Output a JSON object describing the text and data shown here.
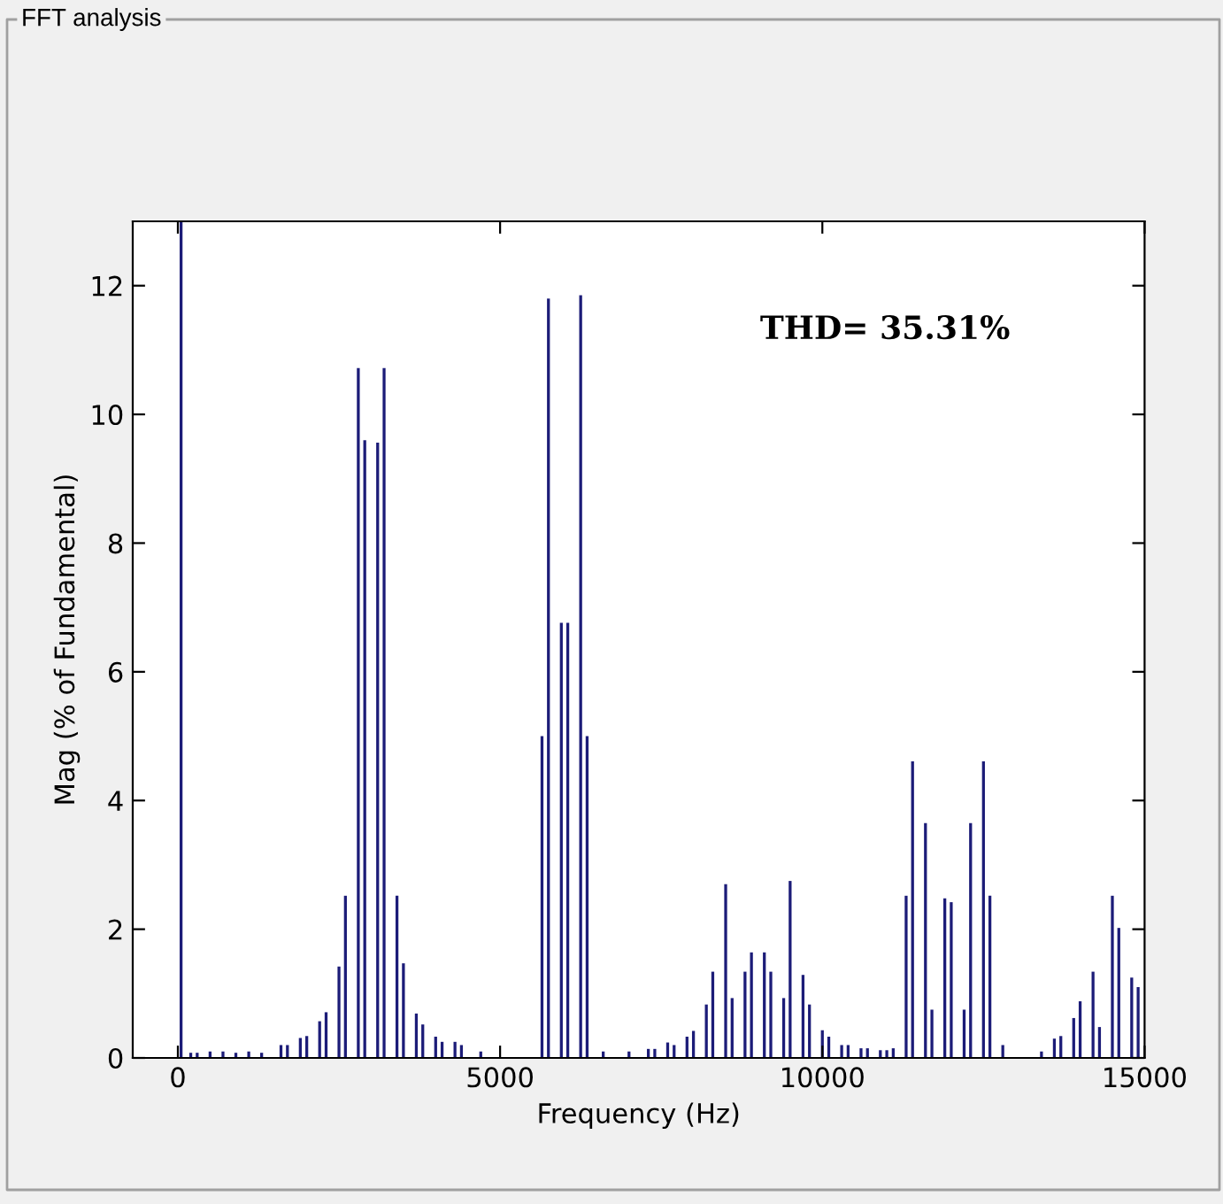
{
  "chart_data": {
    "type": "bar",
    "title": "FFT analysis",
    "xlabel": "Frequency (Hz)",
    "ylabel": "Mag (% of Fundamental)",
    "annotations": [
      "THD= 35.31%"
    ],
    "x": [
      50,
      200,
      300,
      500,
      700,
      900,
      1100,
      1300,
      1600,
      1700,
      1900,
      2000,
      2200,
      2300,
      2500,
      2600,
      2800,
      2900,
      3100,
      3200,
      3400,
      3500,
      3700,
      3800,
      4000,
      4100,
      4300,
      4400,
      4700,
      5650,
      5750,
      5950,
      6050,
      6250,
      6350,
      6600,
      7000,
      7300,
      7400,
      7600,
      7700,
      7900,
      8000,
      8200,
      8300,
      8500,
      8600,
      8800,
      8900,
      9100,
      9200,
      9400,
      9500,
      9700,
      9800,
      10000,
      10100,
      10300,
      10400,
      10600,
      10700,
      10900,
      11000,
      11100,
      11300,
      11400,
      11600,
      11700,
      11900,
      12000,
      12200,
      12300,
      12500,
      12600,
      12800,
      13400,
      13600,
      13700,
      13900,
      14000,
      14200,
      14300,
      14500,
      14600,
      14800,
      14900
    ],
    "values": [
      13,
      0.08,
      0.08,
      0.1,
      0.1,
      0.08,
      0.1,
      0.08,
      0.2,
      0.2,
      0.31,
      0.34,
      0.57,
      0.71,
      1.42,
      2.52,
      10.72,
      9.6,
      9.56,
      10.72,
      2.52,
      1.47,
      0.69,
      0.52,
      0.33,
      0.25,
      0.25,
      0.2,
      0.1,
      5.0,
      11.8,
      6.76,
      6.76,
      11.85,
      5.0,
      0.1,
      0.1,
      0.14,
      0.14,
      0.24,
      0.2,
      0.33,
      0.42,
      0.83,
      1.34,
      2.7,
      0.93,
      1.34,
      1.64,
      1.64,
      1.34,
      0.93,
      2.75,
      1.29,
      0.83,
      0.43,
      0.33,
      0.2,
      0.2,
      0.15,
      0.15,
      0.12,
      0.12,
      0.15,
      2.52,
      4.61,
      3.65,
      0.75,
      2.48,
      2.42,
      0.75,
      3.65,
      4.61,
      2.52,
      0.2,
      0.1,
      0.3,
      0.34,
      0.62,
      0.88,
      1.34,
      0.48,
      2.52,
      2.02,
      1.25,
      1.1
    ],
    "color": "#1c1c78",
    "xlim": [
      -700,
      15000
    ],
    "xticks": [
      0,
      5000,
      10000,
      15000
    ],
    "ylim": [
      0,
      13
    ],
    "yticks": [
      0,
      2,
      4,
      6,
      8,
      10,
      12
    ],
    "grid": false
  }
}
